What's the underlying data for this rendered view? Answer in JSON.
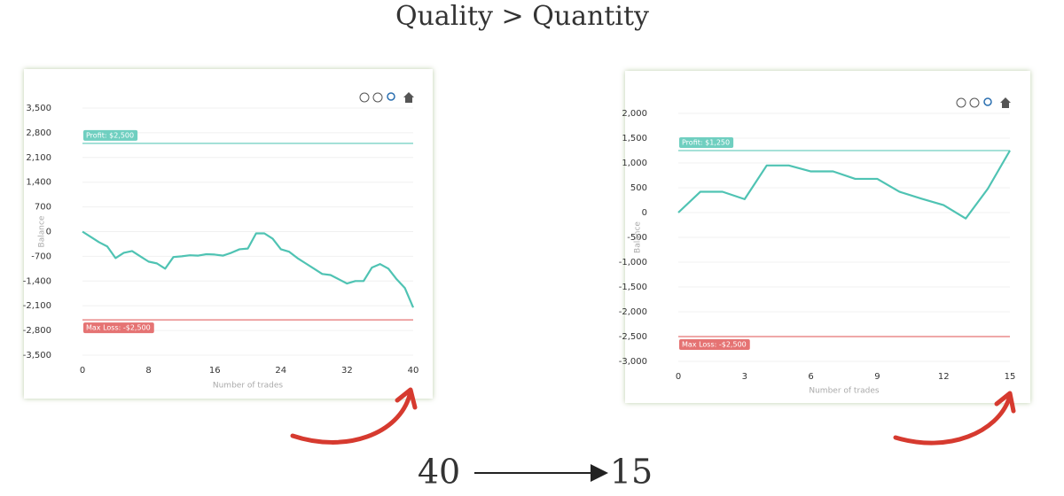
{
  "title": "Quality > Quantity",
  "chart_data": [
    {
      "type": "line",
      "xlabel": "Number of trades",
      "ylabel": "Balance",
      "color": "#4fc3b3",
      "grid": true,
      "x": [
        0,
        1,
        2,
        3,
        4,
        5,
        6,
        7,
        8,
        9,
        10,
        11,
        12,
        13,
        14,
        15,
        16,
        17,
        18,
        19,
        20,
        21,
        22,
        23,
        24,
        25,
        26,
        27,
        28,
        29,
        30,
        31,
        32,
        33,
        34,
        35,
        36,
        37,
        38,
        39,
        40
      ],
      "values": [
        0,
        -150,
        -300,
        -420,
        -750,
        -600,
        -550,
        -700,
        -850,
        -900,
        -1050,
        -720,
        -700,
        -670,
        -680,
        -640,
        -650,
        -680,
        -600,
        -500,
        -480,
        -50,
        -50,
        -200,
        -500,
        -570,
        -750,
        -900,
        -1050,
        -1200,
        -1230,
        -1350,
        -1470,
        -1400,
        -1400,
        -1020,
        -920,
        -1050,
        -1350,
        -1600,
        -2150
      ],
      "xlim": [
        0,
        40
      ],
      "xticks": [
        0,
        8,
        16,
        24,
        32,
        40
      ],
      "ylim": [
        -3500,
        3500
      ],
      "yticks": [
        {
          "value": -3500,
          "label": "-3,500"
        },
        {
          "value": -2800,
          "label": "-2,800"
        },
        {
          "value": -2100,
          "label": "-2,100"
        },
        {
          "value": -1400,
          "label": "-1,400"
        },
        -700,
        0,
        700,
        {
          "value": 1400,
          "label": "1,400"
        },
        {
          "value": 2100,
          "label": "2,100"
        },
        {
          "value": 2800,
          "label": "2,800"
        },
        {
          "value": 3500,
          "label": "3,500"
        }
      ],
      "reference_lines": [
        {
          "value": 2500,
          "label": "Profit: $2,500",
          "color": "#6fcfc0"
        },
        {
          "value": -2500,
          "label": "Max Loss: -$2,500",
          "color": "#e57373"
        }
      ]
    },
    {
      "type": "line",
      "xlabel": "Number of trades",
      "ylabel": "Balance",
      "color": "#4fc3b3",
      "grid": true,
      "x": [
        0,
        1,
        2,
        3,
        4,
        5,
        6,
        7,
        8,
        9,
        10,
        11,
        12,
        13,
        14,
        15
      ],
      "values": [
        0,
        420,
        420,
        270,
        950,
        950,
        830,
        830,
        680,
        680,
        420,
        280,
        150,
        -120,
        480,
        1250
      ],
      "xlim": [
        0,
        15
      ],
      "xticks": [
        0,
        3,
        6,
        9,
        12,
        15
      ],
      "ylim": [
        -3000,
        2000
      ],
      "yticks": [
        {
          "value": -3000,
          "label": "-3,000"
        },
        {
          "value": -2500,
          "label": "-2,500"
        },
        {
          "value": -2000,
          "label": "-2,000"
        },
        {
          "value": -1500,
          "label": "-1,500"
        },
        {
          "value": -1000,
          "label": "-1,000"
        },
        -500,
        0,
        500,
        {
          "value": 1000,
          "label": "1,000"
        },
        {
          "value": 1500,
          "label": "1,500"
        },
        {
          "value": 2000,
          "label": "2,000"
        }
      ],
      "reference_lines": [
        {
          "value": 1250,
          "label": "Profit: $1,250",
          "color": "#6fcfc0"
        },
        {
          "value": -2500,
          "label": "Max Loss: -$2,500",
          "color": "#e57373"
        }
      ]
    }
  ],
  "footer": {
    "from": "40",
    "to": "15"
  }
}
